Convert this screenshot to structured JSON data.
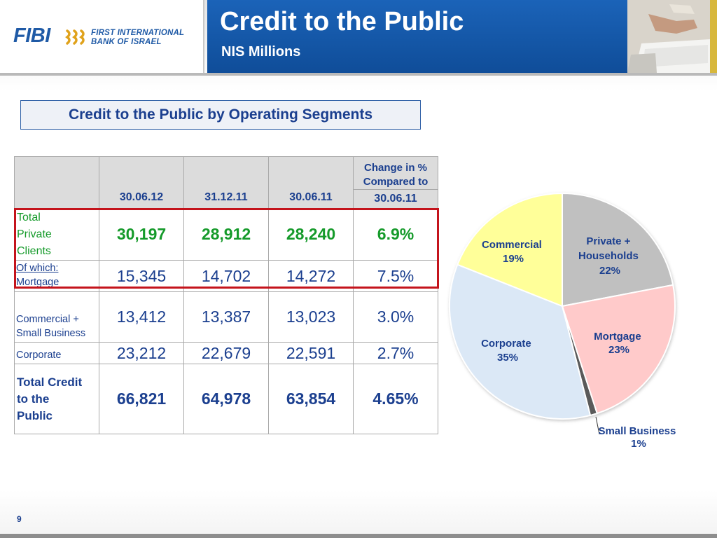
{
  "brand": {
    "logo_short": "FIBI",
    "logo_line1": "FIRST INTERNATIONAL",
    "logo_line2": "BANK OF ISRAEL"
  },
  "header": {
    "title": "Credit to the Public",
    "subtitle": "NIS Millions"
  },
  "section": {
    "banner": "Credit to the Public by Operating Segments"
  },
  "table": {
    "columns": [
      "30.06.12",
      "31.12.11",
      "30.06.11"
    ],
    "change_header_line1": "Change in %",
    "change_header_line2": "Compared to",
    "change_date": "30.06.11",
    "rows": [
      {
        "label_lines": [
          "Total",
          "Private",
          "Clients"
        ],
        "values": [
          "30,197",
          "28,912",
          "28,240"
        ],
        "change": "6.9%"
      },
      {
        "label_lines": [
          "Of which:",
          "Mortgage"
        ],
        "values": [
          "15,345",
          "14,702",
          "14,272"
        ],
        "change": "7.5%"
      },
      {
        "label_lines": [
          "Commercial +",
          "Small Business"
        ],
        "values": [
          "13,412",
          "13,387",
          "13,023"
        ],
        "change": "3.0%"
      },
      {
        "label_lines": [
          "Corporate"
        ],
        "values": [
          "23,212",
          "22,679",
          "22,591"
        ],
        "change": "2.7%"
      },
      {
        "label_lines": [
          "Total Credit",
          "to the",
          "Public"
        ],
        "values": [
          "66,821",
          "64,978",
          "63,854"
        ],
        "change": "4.65%"
      }
    ]
  },
  "chart_data": {
    "type": "pie",
    "slices": [
      {
        "label": "Private + Households",
        "percent_text": "22%",
        "value": 22,
        "color": "#c0c0c0"
      },
      {
        "label": "Mortgage",
        "percent_text": "23%",
        "value": 23,
        "color": "#ffcaca"
      },
      {
        "label": "Small Business",
        "percent_text": "1%",
        "value": 1,
        "color": "#5a5a5a"
      },
      {
        "label": "Corporate",
        "percent_text": "35%",
        "value": 35,
        "color": "#dbe8f6"
      },
      {
        "label": "Commercial",
        "percent_text": "19%",
        "value": 19,
        "color": "#ffff99"
      }
    ],
    "label_lines": {
      "private": [
        "Private +",
        "Households",
        "22%"
      ],
      "mortgage": [
        "Mortgage",
        "23%"
      ],
      "small": [
        "Small Business",
        "1%"
      ],
      "corporate": [
        "Corporate",
        "35%"
      ],
      "commercial": [
        "Commercial",
        "19%"
      ]
    }
  },
  "footer": {
    "page_number": "9"
  }
}
